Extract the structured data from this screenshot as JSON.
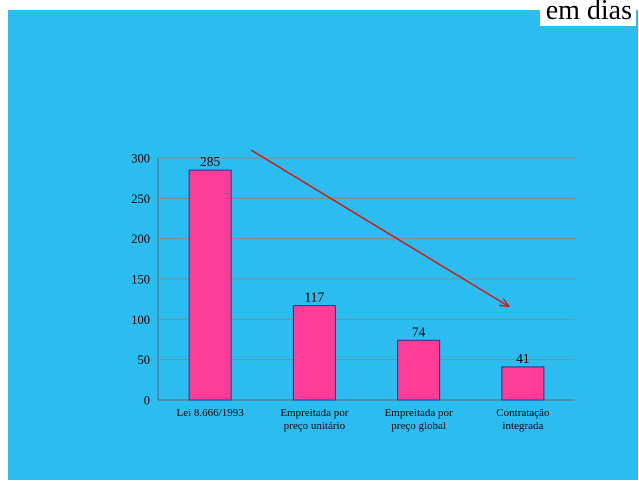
{
  "header": {
    "title_fragment": "em dias"
  },
  "chart_data": {
    "type": "bar",
    "categories": [
      [
        "Lei 8.666/1993"
      ],
      [
        "Empreitada por",
        "preço unitário"
      ],
      [
        "Empreitada por",
        "preço global"
      ],
      [
        "Contratação",
        "integrada"
      ]
    ],
    "values": [
      285,
      117,
      74,
      41
    ],
    "data_labels": [
      "285",
      "117",
      "74",
      "41"
    ],
    "ylim": [
      0,
      300
    ],
    "yticks": [
      0,
      50,
      100,
      150,
      200,
      250,
      300
    ],
    "grid": true,
    "legend": "none",
    "colors": {
      "bar_fill": "#ff3d98",
      "bar_stroke": "#2c2f8c",
      "gridline": "#8a8a8a",
      "trend_arrow": "#cc1f1f",
      "background": "#2bbdf0"
    },
    "annotations": [
      {
        "type": "arrow",
        "description": "downward trend arrow"
      }
    ]
  }
}
